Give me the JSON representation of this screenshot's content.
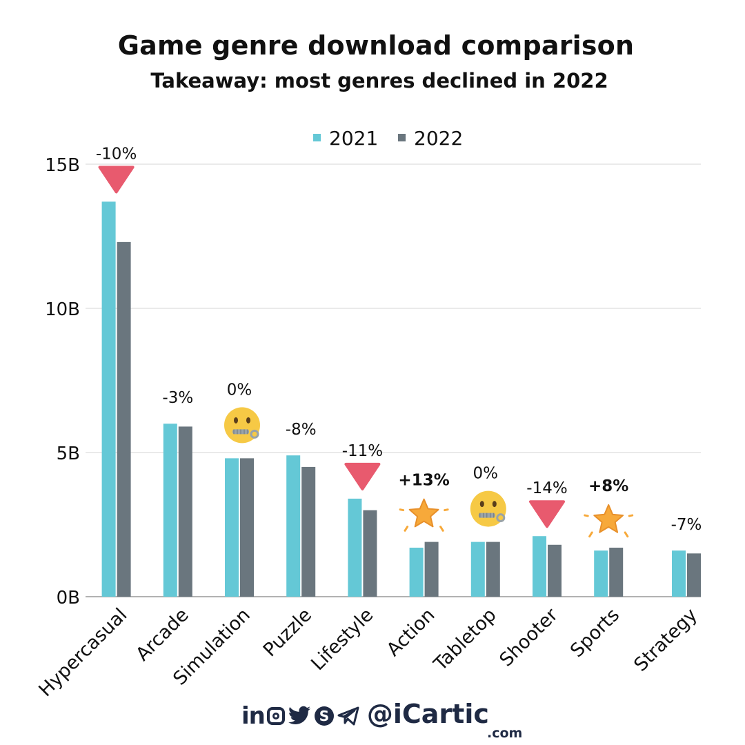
{
  "title": "Game genre download comparison",
  "subtitle": "Takeaway: most genres declined in 2022",
  "footer": {
    "social_icons": [
      "linkedin-icon",
      "instagram-icon",
      "twitter-icon",
      "skype-icon",
      "telegram-icon"
    ],
    "handle": "@iCartic",
    "domain": ".com",
    "color": "#1f2a44"
  },
  "chart_data": {
    "type": "bar",
    "title": "Game genre download comparison",
    "subtitle": "Takeaway: most genres declined in 2022",
    "categories": [
      "Hypercasual",
      "Arcade",
      "Simulation",
      "Puzzle",
      "Lifestyle",
      "Action",
      "Tabletop",
      "Shooter",
      "Sports",
      "Strategy"
    ],
    "series": [
      {
        "name": "2021",
        "color": "#64c8d6",
        "values": [
          13.7,
          6.0,
          4.8,
          4.9,
          3.4,
          1.7,
          1.9,
          2.1,
          1.6,
          1.6
        ]
      },
      {
        "name": "2022",
        "color": "#6a767e",
        "values": [
          12.3,
          5.9,
          4.8,
          4.5,
          3.0,
          1.9,
          1.9,
          1.8,
          1.7,
          1.5
        ]
      }
    ],
    "annotations": [
      "-10%",
      "-3%",
      "0%",
      "-8%",
      "-11%",
      "+13%",
      "0%",
      "-14%",
      "+8%",
      "-7%"
    ],
    "annotation_markers": [
      "down-triangle-icon",
      "none",
      "zipper-mouth-face-icon",
      "none",
      "down-triangle-icon",
      "star-icon",
      "zipper-mouth-face-icon",
      "down-triangle-icon",
      "star-icon",
      "none"
    ],
    "yticks": [
      "0B",
      "5B",
      "10B",
      "15B"
    ],
    "ytick_values": [
      0,
      5,
      10,
      15
    ],
    "ylim": [
      0,
      15
    ],
    "grid": true,
    "legend": "top-center",
    "marker_colors": {
      "down": "#e85a6e",
      "star": "#f7a93a",
      "face": "#f6c945"
    }
  }
}
